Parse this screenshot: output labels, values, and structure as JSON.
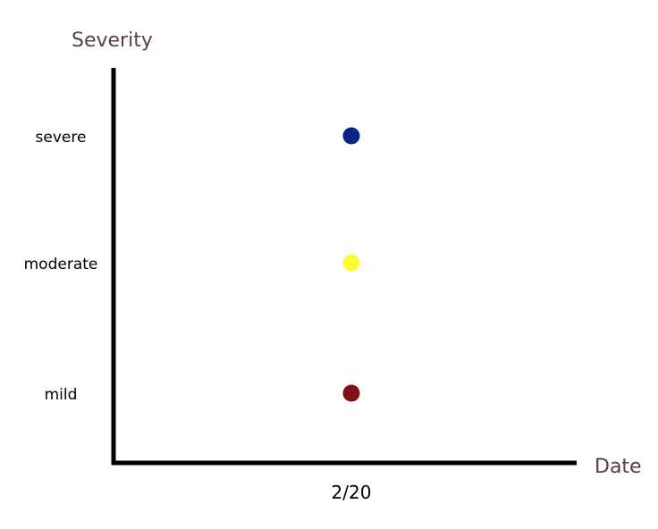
{
  "chart_data": {
    "type": "scatter",
    "title": "",
    "xlabel": "Date",
    "ylabel": "Severity",
    "x_categories": [
      "2/20"
    ],
    "y_categories": [
      "mild",
      "moderate",
      "severe"
    ],
    "grid": false,
    "legend": "none",
    "points": [
      {
        "x": "2/20",
        "y": "severe",
        "color": "#0b2585"
      },
      {
        "x": "2/20",
        "y": "moderate",
        "color": "#fdfb35"
      },
      {
        "x": "2/20",
        "y": "mild",
        "color": "#7d1217"
      }
    ],
    "colors": {
      "axis": "#000000",
      "axis_title": "#5a3f48",
      "tick_label": "#000000"
    }
  }
}
